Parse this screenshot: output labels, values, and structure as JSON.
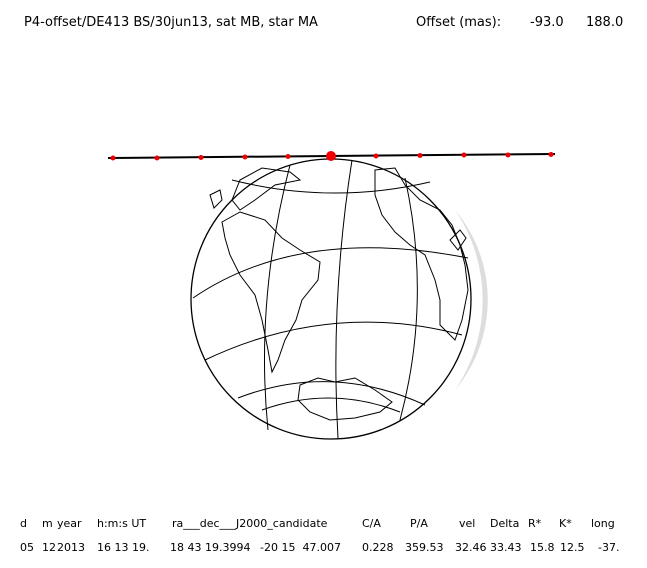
{
  "header": {
    "title": "P4-offset/DE413 BS/30jun13, sat MB, star MA",
    "offset_label": "Offset (mas):",
    "offset_values": [
      "-93.0",
      "188.0"
    ]
  },
  "table": {
    "columns": [
      "d",
      "m",
      "year",
      "h:m:s UT",
      "ra___dec___J2000_candidate",
      "C/A",
      "P/A",
      "vel",
      "Delta",
      "R*",
      "K*",
      "long"
    ],
    "row": [
      "05",
      "12",
      "2013",
      "16 13 19.",
      "18 43 19.3994",
      "-20 15  47.007",
      "0.228",
      "359.53",
      "32.46",
      "33.43",
      "15.8",
      "12.5",
      "-37."
    ]
  }
}
